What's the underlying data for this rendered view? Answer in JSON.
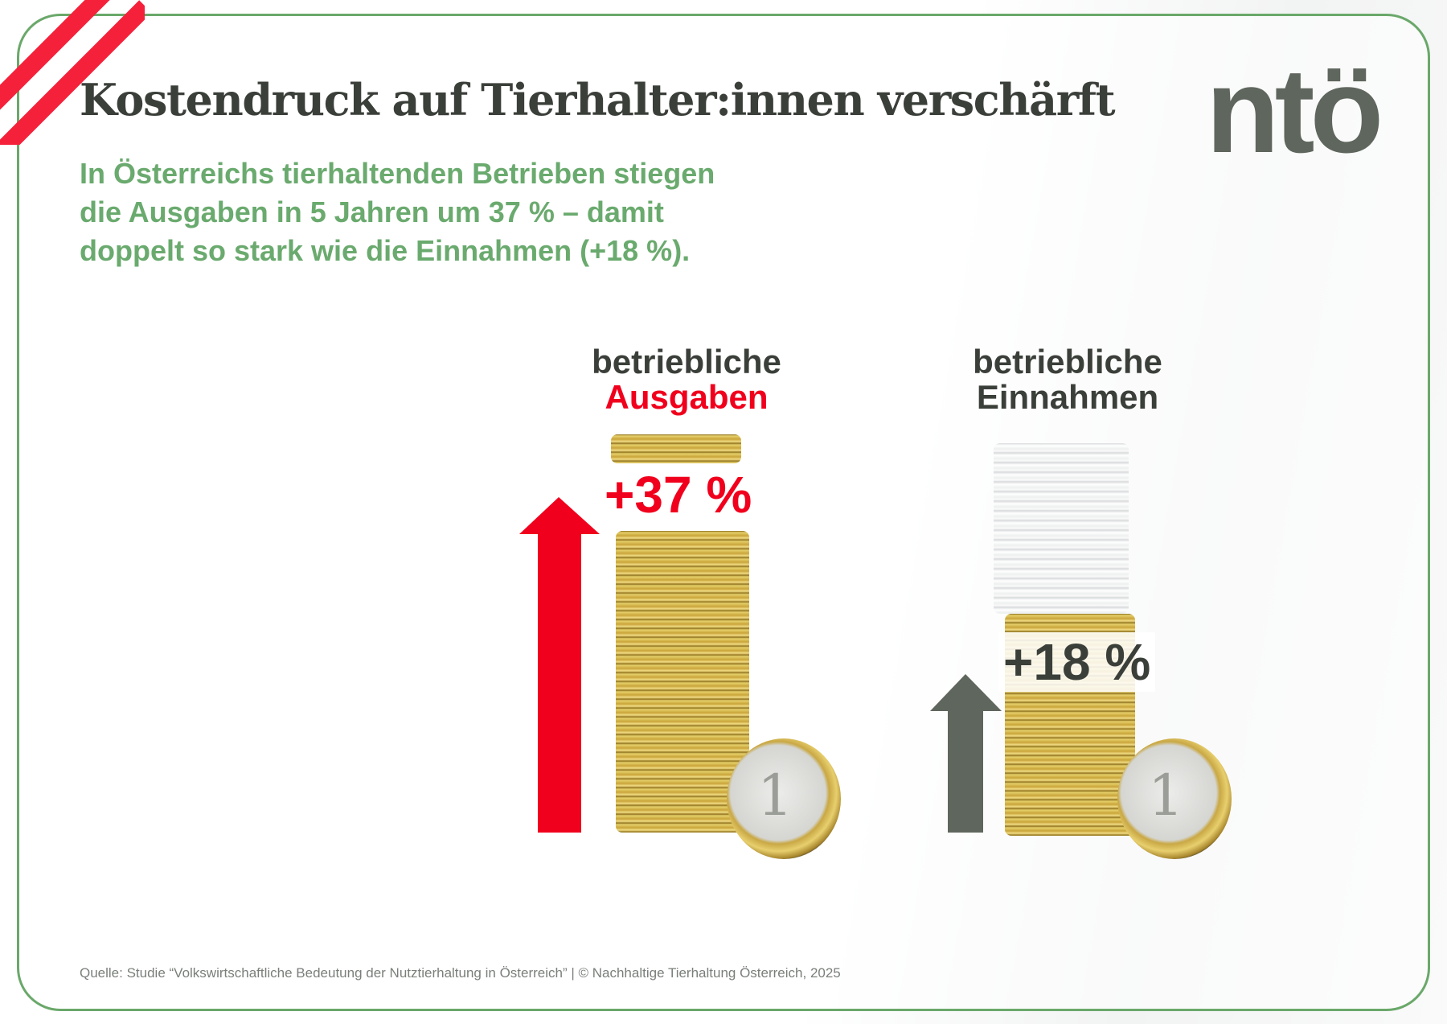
{
  "title": "Kostendruck auf Tierhalter:innen verschärft",
  "logo": "ntö",
  "subtitle": [
    "In Österreichs tierhaltenden Betrieben stiegen",
    "die Ausgaben in 5 Jahren um 37 % – damit",
    "doppelt so stark wie die Einnahmen (+18 %)."
  ],
  "items": [
    {
      "label_line1": "betriebliche",
      "label_line2": "Ausgaben",
      "change": "+37 %",
      "change_percent": 37,
      "color": "#f0001c"
    },
    {
      "label_line1": "betriebliche",
      "label_line2": "Einnahmen",
      "change": "+18 %",
      "change_percent": 18,
      "color": "#5f665d"
    }
  ],
  "footer": "Quelle:  Studie “Volkswirtschaftliche Bedeutung der Nutztierhaltung in Österreich”  |  © Nachhaltige Tierhaltung Österreich, 2025",
  "colors": {
    "frame": "#6aa86a",
    "subtitle": "#6aaa6e",
    "accent_red": "#f0001c",
    "dark": "#3b3f3a"
  }
}
